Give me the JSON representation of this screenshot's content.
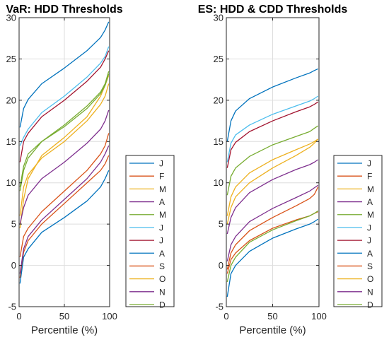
{
  "legend": [
    "J",
    "F",
    "M",
    "A",
    "M",
    "J",
    "J",
    "A",
    "S",
    "O",
    "N",
    "D"
  ],
  "colors": [
    "#0072BD",
    "#D95319",
    "#EDB120",
    "#7E2F8E",
    "#77AC30",
    "#4DBEEE",
    "#A2142F",
    "#0072BD",
    "#D95319",
    "#EDB120",
    "#7E2F8E",
    "#77AC30"
  ],
  "chart_data": [
    {
      "type": "line",
      "title": "VaR: HDD Thresholds",
      "xlabel": "Percentile (%)",
      "ylabel": "",
      "xlim": [
        0,
        100
      ],
      "ylim": [
        -5,
        30
      ],
      "xticks": [
        0,
        50,
        100
      ],
      "yticks": [
        -5,
        0,
        5,
        10,
        15,
        20,
        25,
        30
      ],
      "grid": true,
      "x": [
        1,
        5,
        10,
        25,
        50,
        75,
        90,
        95,
        99
      ],
      "series": [
        {
          "name": "J",
          "values": [
            16.7,
            19.0,
            20.1,
            22.0,
            23.9,
            26.0,
            27.6,
            28.5,
            29.5
          ]
        },
        {
          "name": "F",
          "values": [
            -1.5,
            1.6,
            3.0,
            5.0,
            7.5,
            10.0,
            11.5,
            12.3,
            13.3
          ]
        },
        {
          "name": "M",
          "values": [
            4.5,
            8.0,
            10.5,
            13.3,
            15.5,
            18.0,
            20.5,
            21.8,
            23.0
          ]
        },
        {
          "name": "A",
          "values": [
            -1.0,
            2.0,
            3.5,
            5.5,
            8.0,
            10.5,
            12.5,
            13.5,
            14.5
          ]
        },
        {
          "name": "M",
          "values": [
            9.5,
            12.0,
            13.5,
            15.0,
            17.0,
            19.3,
            21.0,
            22.0,
            23.5
          ]
        },
        {
          "name": "J",
          "values": [
            14.5,
            15.5,
            16.5,
            18.5,
            20.5,
            22.8,
            24.5,
            25.3,
            26.5
          ]
        },
        {
          "name": "J",
          "values": [
            12.5,
            15.0,
            16.0,
            18.0,
            20.0,
            22.3,
            24.0,
            25.0,
            26.0
          ]
        },
        {
          "name": "A",
          "values": [
            -2.2,
            1.0,
            2.0,
            4.0,
            5.8,
            7.8,
            9.5,
            10.5,
            11.5
          ]
        },
        {
          "name": "S",
          "values": [
            1.0,
            3.5,
            4.5,
            6.5,
            9.0,
            11.5,
            13.5,
            14.5,
            16.0
          ]
        },
        {
          "name": "O",
          "values": [
            6.0,
            9.5,
            11.0,
            13.0,
            15.0,
            17.5,
            19.5,
            20.5,
            22.0
          ]
        },
        {
          "name": "N",
          "values": [
            5.0,
            7.0,
            8.5,
            10.5,
            12.5,
            14.8,
            16.5,
            17.5,
            18.8
          ]
        },
        {
          "name": "D",
          "values": [
            9.0,
            11.5,
            13.0,
            15.0,
            16.8,
            19.0,
            20.8,
            21.8,
            23.2
          ]
        }
      ]
    },
    {
      "type": "line",
      "title": "ES: HDD & CDD Thresholds",
      "xlabel": "Percentile (%)",
      "ylabel": "",
      "xlim": [
        0,
        100
      ],
      "ylim": [
        -5,
        30
      ],
      "xticks": [
        0,
        50,
        100
      ],
      "yticks": [
        -5,
        0,
        5,
        10,
        15,
        20,
        25,
        30
      ],
      "grid": true,
      "x": [
        1,
        5,
        10,
        25,
        50,
        75,
        90,
        95,
        99
      ],
      "series": [
        {
          "name": "J",
          "values": [
            15.0,
            17.5,
            18.7,
            20.2,
            21.6,
            22.7,
            23.3,
            23.6,
            23.8
          ]
        },
        {
          "name": "F",
          "values": [
            -1.0,
            0.7,
            1.5,
            3.0,
            4.5,
            5.5,
            6.0,
            6.3,
            6.5
          ]
        },
        {
          "name": "M",
          "values": [
            6.0,
            8.3,
            9.5,
            11.2,
            12.8,
            14.0,
            14.7,
            15.0,
            15.3
          ]
        },
        {
          "name": "A",
          "values": [
            0.5,
            2.5,
            3.5,
            5.3,
            6.9,
            8.2,
            9.0,
            9.4,
            9.7
          ]
        },
        {
          "name": "M",
          "values": [
            8.5,
            10.8,
            11.8,
            13.2,
            14.6,
            15.6,
            16.2,
            16.6,
            16.9
          ]
        },
        {
          "name": "J",
          "values": [
            12.5,
            14.8,
            15.8,
            17.0,
            18.3,
            19.3,
            19.9,
            20.2,
            20.5
          ]
        },
        {
          "name": "J",
          "values": [
            11.8,
            14.0,
            14.9,
            16.2,
            17.5,
            18.6,
            19.2,
            19.5,
            19.8
          ]
        },
        {
          "name": "A",
          "values": [
            -3.8,
            -1.0,
            0.0,
            1.7,
            3.3,
            4.4,
            5.0,
            5.3,
            5.6
          ]
        },
        {
          "name": "S",
          "values": [
            -0.5,
            1.5,
            2.5,
            4.2,
            5.8,
            7.2,
            8.1,
            8.6,
            9.5
          ]
        },
        {
          "name": "O",
          "values": [
            5.0,
            7.0,
            8.3,
            10.0,
            11.8,
            13.3,
            14.3,
            14.8,
            15.3
          ]
        },
        {
          "name": "N",
          "values": [
            3.8,
            5.8,
            7.0,
            8.8,
            10.4,
            11.6,
            12.2,
            12.5,
            12.8
          ]
        },
        {
          "name": "D",
          "values": [
            -2.0,
            0.0,
            1.0,
            2.8,
            4.3,
            5.4,
            6.0,
            6.3,
            6.6
          ]
        }
      ]
    }
  ]
}
